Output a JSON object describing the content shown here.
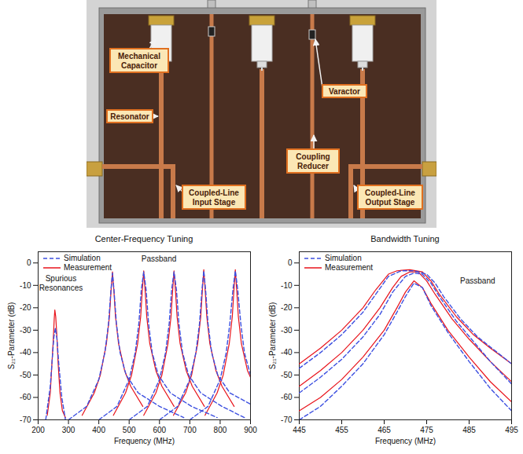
{
  "photo": {
    "labels": [
      "Mechanical Capacitor",
      "Resonator",
      "Varactor",
      "Coupling Reducer",
      "Coupled-Line Input Stage",
      "Coupled-Line Output Stage"
    ]
  },
  "chart_data": [
    {
      "type": "line",
      "title": "Center-Frequency Tuning",
      "x_label": "Frequency (MHz)",
      "y_label": "S₂₁-Parameter (dB)",
      "xlim": [
        200,
        900
      ],
      "xticks": [
        200,
        300,
        400,
        500,
        600,
        700,
        800,
        900
      ],
      "ylim": [
        -70,
        5
      ],
      "yticks": [
        -70,
        -60,
        -50,
        -40,
        -30,
        -20,
        -10,
        0
      ],
      "legend": "top-left",
      "annotations": [
        {
          "text": "Spurious Resonances",
          "x": 275,
          "y": -9
        },
        {
          "text": "Passband",
          "x": 598,
          "y": 2
        }
      ],
      "series": [
        {
          "name": "Simulation",
          "color": "#3c4fe0",
          "line_style": "dashed",
          "curves": [
            {
              "x": [
                225,
                240,
                248,
                252,
                257,
                262,
                268,
                278,
                290
              ],
              "values": [
                -70,
                -55,
                -40,
                -33,
                -29,
                -34,
                -45,
                -60,
                -70
              ]
            },
            {
              "x": [
                300,
                360,
                400,
                420,
                432,
                440,
                445,
                450,
                458,
                470,
                490,
                530,
                600,
                680
              ],
              "values": [
                -70,
                -64,
                -52,
                -40,
                -27,
                -12,
                -4.5,
                -12,
                -27,
                -40,
                -50,
                -58,
                -64,
                -69
              ]
            },
            {
              "x": [
                400,
                460,
                500,
                520,
                532,
                540,
                548,
                556,
                564,
                576,
                596,
                636,
                706,
                790
              ],
              "values": [
                -70,
                -64,
                -52,
                -40,
                -27,
                -12,
                -4,
                -12,
                -27,
                -40,
                -50,
                -58,
                -64,
                -69
              ]
            },
            {
              "x": [
                500,
                560,
                600,
                620,
                632,
                640,
                648,
                656,
                664,
                676,
                696,
                736,
                806,
                880
              ],
              "values": [
                -70,
                -64,
                -52,
                -40,
                -27,
                -12,
                -4,
                -12,
                -27,
                -40,
                -50,
                -58,
                -64,
                -69
              ]
            },
            {
              "x": [
                600,
                660,
                700,
                720,
                732,
                740,
                746,
                752,
                760,
                772,
                792,
                832,
                900
              ],
              "values": [
                -70,
                -64,
                -52,
                -40,
                -27,
                -12,
                -3.5,
                -12,
                -27,
                -40,
                -50,
                -58,
                -63
              ]
            },
            {
              "x": [
                700,
                760,
                800,
                820,
                832,
                842,
                850,
                858,
                868,
                880,
                900
              ],
              "values": [
                -70,
                -64,
                -52,
                -40,
                -27,
                -12,
                -3.5,
                -12,
                -27,
                -40,
                -50
              ]
            }
          ]
        },
        {
          "name": "Measurement",
          "color": "#e8131b",
          "line_style": "solid",
          "curves": [
            {
              "x": [
                230,
                240,
                245,
                250,
                253,
                255,
                258,
                262,
                266,
                272,
                280,
                290
              ],
              "values": [
                -68,
                -58,
                -46,
                -34,
                -25,
                -21,
                -24,
                -33,
                -45,
                -58,
                -66,
                -69
              ]
            },
            {
              "x": [
                345,
                385,
                405,
                425,
                435,
                440,
                445,
                450,
                455,
                465,
                485,
                505,
                545
              ],
              "values": [
                -68,
                -58,
                -50,
                -36,
                -24,
                -13,
                -4,
                -13,
                -24,
                -36,
                -48,
                -55,
                -64
              ]
            },
            {
              "x": [
                448,
                488,
                508,
                528,
                538,
                543,
                548,
                553,
                558,
                568,
                588,
                608,
                648
              ],
              "values": [
                -68,
                -58,
                -50,
                -36,
                -24,
                -13,
                -3.5,
                -13,
                -24,
                -36,
                -48,
                -55,
                -64
              ]
            },
            {
              "x": [
                548,
                588,
                608,
                628,
                638,
                643,
                648,
                653,
                658,
                668,
                688,
                708,
                748
              ],
              "values": [
                -68,
                -58,
                -50,
                -36,
                -24,
                -13,
                -3.5,
                -13,
                -24,
                -36,
                -48,
                -55,
                -64
              ]
            },
            {
              "x": [
                646,
                686,
                706,
                726,
                736,
                741,
                746,
                751,
                756,
                766,
                786,
                806,
                846
              ],
              "values": [
                -68,
                -58,
                -50,
                -36,
                -24,
                -13,
                -3,
                -13,
                -24,
                -36,
                -48,
                -55,
                -64
              ]
            },
            {
              "x": [
                750,
                790,
                810,
                830,
                840,
                845,
                850,
                855,
                860,
                870,
                890,
                900
              ],
              "values": [
                -68,
                -58,
                -50,
                -36,
                -24,
                -13,
                -3,
                -13,
                -24,
                -36,
                -48,
                -51
              ]
            }
          ]
        }
      ]
    },
    {
      "type": "line",
      "title": "Bandwidth Tuning",
      "x_label": "Frequency (MHz)",
      "y_label": "S₂₁-Parameter (dB)",
      "xlim": [
        445,
        495
      ],
      "xticks": [
        445,
        455,
        465,
        475,
        485,
        495
      ],
      "ylim": [
        -70,
        5
      ],
      "yticks": [
        -70,
        -60,
        -50,
        -40,
        -30,
        -20,
        -10,
        0
      ],
      "legend": "top-left",
      "annotations": [
        {
          "text": "Passband",
          "x": 487,
          "y": -8
        }
      ],
      "series": [
        {
          "name": "Simulation",
          "color": "#3c4fe0",
          "line_style": "dashed",
          "curves": [
            {
              "x": [
                445,
                450,
                455,
                460,
                463,
                466,
                469,
                472,
                475,
                477,
                479,
                483,
                487,
                491,
                495
              ],
              "values": [
                -47,
                -40,
                -32,
                -22,
                -14,
                -6,
                -3.5,
                -3.5,
                -5,
                -9,
                -15,
                -25,
                -33,
                -39,
                -45
              ]
            },
            {
              "x": [
                445,
                450,
                455,
                460,
                464,
                467,
                470,
                472,
                474,
                476,
                478,
                482,
                486,
                490,
                495
              ],
              "values": [
                -58,
                -51,
                -43,
                -33,
                -23,
                -13,
                -6,
                -4.5,
                -5,
                -9,
                -15,
                -26,
                -35,
                -44,
                -54
              ]
            },
            {
              "x": [
                445,
                450,
                455,
                460,
                465,
                468,
                470,
                472,
                474,
                476,
                480,
                485,
                490,
                495
              ],
              "values": [
                -70,
                -64,
                -55,
                -45,
                -32,
                -22,
                -15,
                -9,
                -11,
                -19,
                -31,
                -44,
                -56,
                -66
              ]
            }
          ]
        },
        {
          "name": "Measurement",
          "color": "#e8131b",
          "line_style": "solid",
          "curves": [
            {
              "x": [
                445,
                450,
                455,
                460,
                463,
                466,
                468,
                471,
                474,
                476,
                478,
                482,
                486,
                490,
                495
              ],
              "values": [
                -45,
                -38,
                -30,
                -20,
                -12,
                -5,
                -3.5,
                -3,
                -4,
                -8,
                -14,
                -24,
                -32,
                -38,
                -45
              ]
            },
            {
              "x": [
                445,
                450,
                455,
                460,
                464,
                467,
                469,
                471,
                473,
                475,
                477,
                481,
                485,
                490,
                495
              ],
              "values": [
                -55,
                -48,
                -40,
                -30,
                -20,
                -11,
                -6,
                -4,
                -4,
                -8,
                -14,
                -25,
                -34,
                -44,
                -53
              ]
            },
            {
              "x": [
                445,
                450,
                455,
                460,
                465,
                468,
                470,
                472,
                474,
                476,
                480,
                485,
                490,
                495
              ],
              "values": [
                -66,
                -60,
                -52,
                -42,
                -30,
                -20,
                -13,
                -8,
                -11,
                -18,
                -30,
                -42,
                -53,
                -62
              ]
            }
          ]
        }
      ]
    }
  ]
}
